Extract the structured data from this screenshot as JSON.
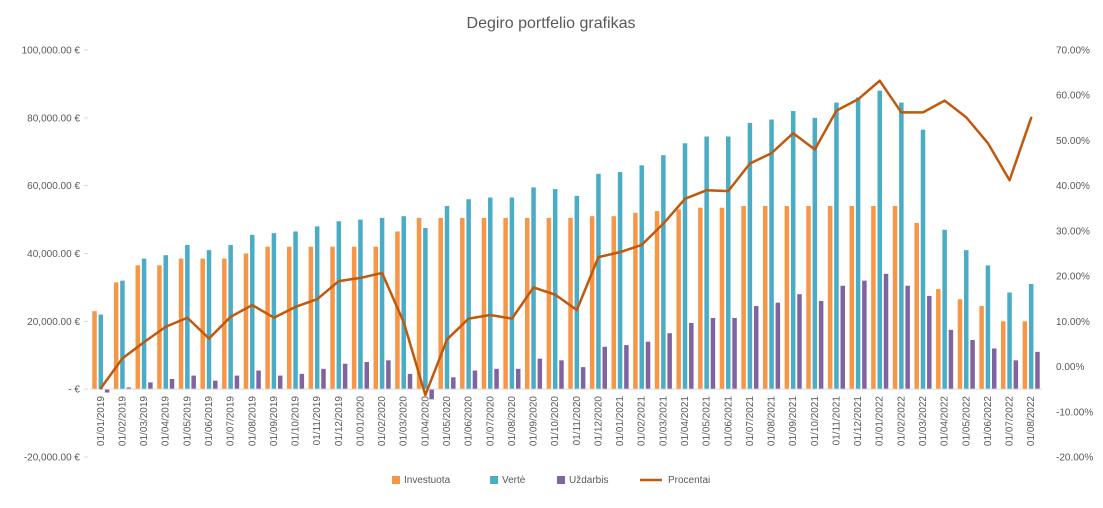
{
  "chart_data": {
    "type": "bar",
    "title": "Degiro portfelio grafikas",
    "xlabel": "",
    "ylabel": "",
    "categories": [
      "01/01/2019",
      "01/02/2019",
      "01/03/2019",
      "01/04/2019",
      "01/05/2019",
      "01/06/2019",
      "01/07/2019",
      "01/08/2019",
      "01/09/2019",
      "01/10/2019",
      "01/11/2019",
      "01/12/2019",
      "01/01/2020",
      "01/02/2020",
      "01/03/2020",
      "01/04/2020",
      "01/05/2020",
      "01/06/2020",
      "01/07/2020",
      "01/08/2020",
      "01/09/2020",
      "01/10/2020",
      "01/11/2020",
      "01/12/2020",
      "01/01/2021",
      "01/02/2021",
      "01/03/2021",
      "01/04/2021",
      "01/05/2021",
      "01/06/2021",
      "01/07/2021",
      "01/08/2021",
      "01/09/2021",
      "01/10/2021",
      "01/11/2021",
      "01/12/2021",
      "01/01/2022",
      "01/02/2022",
      "01/03/2022",
      "01/04/2022",
      "01/05/2022",
      "01/06/2022",
      "01/07/2022",
      "01/08/2022"
    ],
    "series": [
      {
        "name": "Investuota",
        "kind": "bar",
        "axis": "left",
        "color": "#F79646",
        "values": [
          23000,
          31500,
          36500,
          36500,
          38500,
          38500,
          38500,
          40000,
          42000,
          42000,
          42000,
          42000,
          42000,
          42000,
          46500,
          50500,
          50500,
          50500,
          50500,
          50500,
          50500,
          50500,
          50500,
          51000,
          51000,
          52000,
          52500,
          53000,
          53500,
          53500,
          54000,
          54000,
          54000,
          54000,
          54000,
          54000,
          54000,
          54000,
          49000,
          29500,
          26500,
          24500,
          20000,
          20000
        ]
      },
      {
        "name": "Vertė",
        "kind": "bar",
        "axis": "left",
        "color": "#4BACC6",
        "values": [
          22000,
          32000,
          38500,
          39500,
          42500,
          41000,
          42500,
          45500,
          46000,
          46500,
          48000,
          49500,
          50000,
          50500,
          51000,
          47500,
          54000,
          56000,
          56500,
          56500,
          59500,
          59000,
          57000,
          63500,
          64000,
          66000,
          69000,
          72500,
          74500,
          74500,
          78500,
          79500,
          82000,
          80000,
          84500,
          86000,
          88000,
          84500,
          76500,
          47000,
          41000,
          36500,
          28500,
          31000
        ]
      },
      {
        "name": "Uždarbis",
        "kind": "bar",
        "axis": "left",
        "color": "#8064A2",
        "values": [
          -1000,
          500,
          2000,
          3000,
          4000,
          2500,
          4000,
          5500,
          4000,
          4500,
          6000,
          7500,
          8000,
          8500,
          4500,
          -3000,
          3500,
          5500,
          6000,
          6000,
          9000,
          8500,
          6500,
          12500,
          13000,
          14000,
          16500,
          19500,
          21000,
          21000,
          24500,
          25500,
          28000,
          26000,
          30500,
          32000,
          34000,
          30500,
          27500,
          17500,
          14500,
          12000,
          8500,
          11000
        ]
      },
      {
        "name": "Procentai",
        "kind": "line",
        "axis": "right",
        "color": "#C0590E",
        "values": [
          -4.8,
          1.8,
          5.4,
          8.8,
          10.8,
          6.2,
          11.0,
          13.6,
          10.8,
          13.2,
          14.9,
          18.9,
          19.6,
          20.7,
          9.8,
          -6.3,
          6.0,
          10.6,
          11.4,
          10.6,
          17.5,
          15.9,
          12.5,
          24.2,
          25.3,
          26.9,
          31.6,
          37.1,
          39.0,
          38.8,
          44.9,
          47.2,
          51.6,
          48.0,
          56.6,
          59.1,
          63.2,
          56.2,
          56.2,
          58.8,
          55.1,
          49.4,
          41.2,
          55.0
        ]
      }
    ],
    "left_axis": {
      "min": -20000,
      "max": 100000,
      "step": 20000,
      "tick_labels": [
        "-20,000.00 €",
        "-  €",
        "20,000.00 €",
        "40,000.00 €",
        "60,000.00 €",
        "80,000.00 €",
        "100,000.00 €"
      ]
    },
    "right_axis": {
      "min": -20,
      "max": 70,
      "step": 10,
      "tick_labels": [
        "-20.00%",
        "-10.00%",
        "0.00%",
        "10.00%",
        "20.00%",
        "30.00%",
        "40.00%",
        "50.00%",
        "60.00%",
        "70.00%"
      ]
    },
    "grid": false,
    "legend": {
      "position": "bottom",
      "entries": [
        "Investuota",
        "Vertė",
        "Uždarbis",
        "Procentai"
      ]
    },
    "axis_line_color": "#D9D9D9",
    "text_color": "#595959"
  }
}
